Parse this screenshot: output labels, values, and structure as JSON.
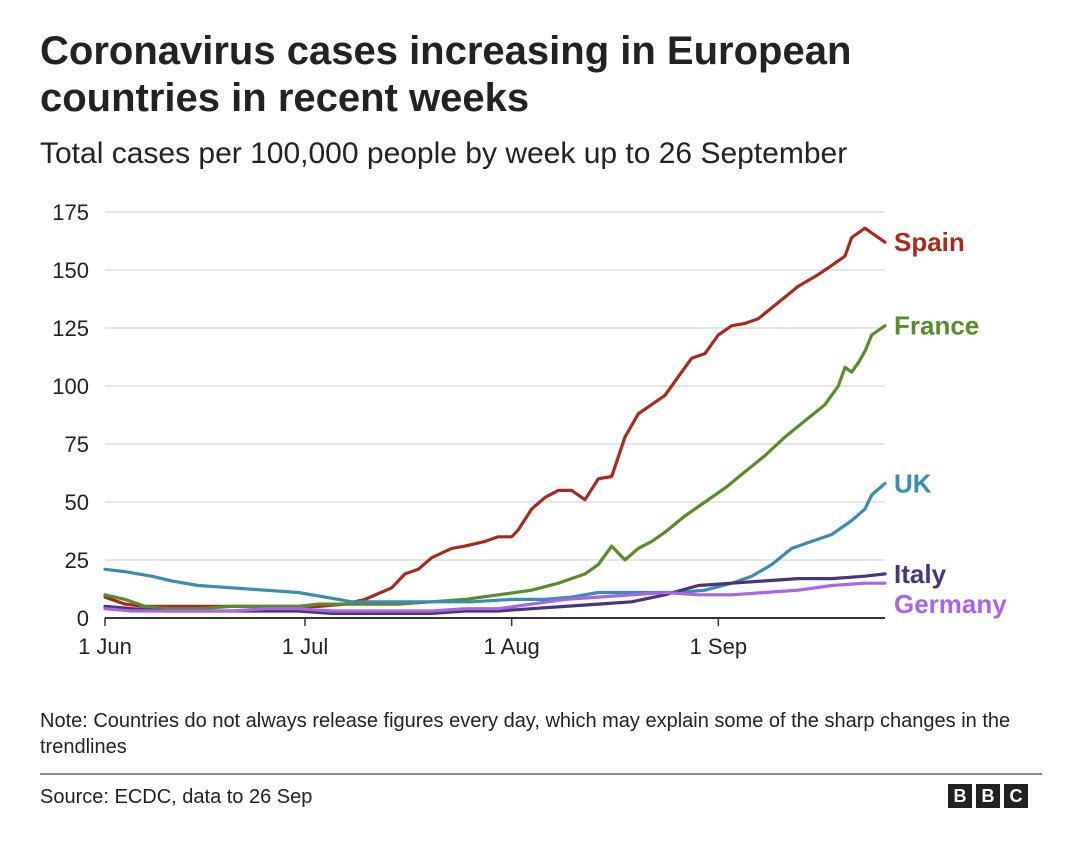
{
  "chart_data": {
    "type": "line",
    "title": "Coronavirus cases increasing in European countries in recent weeks",
    "subtitle": "Total cases per 100,000 people by week up to 26 September",
    "xlabel": "",
    "ylabel": "",
    "xlim": [
      "2020-06-01",
      "2020-09-26"
    ],
    "ylim": [
      0,
      175
    ],
    "yticks": [
      0,
      25,
      50,
      75,
      100,
      125,
      150,
      175
    ],
    "xticks": [
      {
        "date": "2020-06-01",
        "label": "1 Jun"
      },
      {
        "date": "2020-07-01",
        "label": "1 Jul"
      },
      {
        "date": "2020-08-01",
        "label": "1 Aug"
      },
      {
        "date": "2020-09-01",
        "label": "1 Sep"
      }
    ],
    "grid": true,
    "legend": "direct labels at line ends (right)",
    "series": [
      {
        "name": "Spain",
        "color": "#a62b1f",
        "x": [
          "2020-06-01",
          "2020-06-04",
          "2020-06-07",
          "2020-06-10",
          "2020-06-14",
          "2020-06-18",
          "2020-06-22",
          "2020-06-26",
          "2020-06-30",
          "2020-07-03",
          "2020-07-07",
          "2020-07-10",
          "2020-07-14",
          "2020-07-16",
          "2020-07-18",
          "2020-07-20",
          "2020-07-23",
          "2020-07-25",
          "2020-07-28",
          "2020-07-30",
          "2020-08-01",
          "2020-08-02",
          "2020-08-04",
          "2020-08-06",
          "2020-08-08",
          "2020-08-10",
          "2020-08-12",
          "2020-08-14",
          "2020-08-16",
          "2020-08-18",
          "2020-08-20",
          "2020-08-22",
          "2020-08-24",
          "2020-08-26",
          "2020-08-28",
          "2020-08-30",
          "2020-09-01",
          "2020-09-03",
          "2020-09-05",
          "2020-09-07",
          "2020-09-10",
          "2020-09-13",
          "2020-09-16",
          "2020-09-18",
          "2020-09-20",
          "2020-09-21",
          "2020-09-23",
          "2020-09-24",
          "2020-09-26"
        ],
        "y": [
          9,
          6,
          5,
          5,
          5,
          5,
          5,
          5,
          5,
          5,
          6,
          8,
          13,
          19,
          21,
          26,
          30,
          31,
          33,
          35,
          35,
          38,
          47,
          52,
          55,
          55,
          51,
          60,
          61,
          78,
          88,
          92,
          96,
          104,
          112,
          114,
          122,
          126,
          127,
          129,
          136,
          143,
          148,
          152,
          156,
          164,
          168,
          166,
          162
        ]
      },
      {
        "name": "France",
        "color": "#588c2b",
        "x": [
          "2020-06-01",
          "2020-06-04",
          "2020-06-07",
          "2020-06-10",
          "2020-06-15",
          "2020-06-20",
          "2020-06-25",
          "2020-06-30",
          "2020-07-03",
          "2020-07-06",
          "2020-07-10",
          "2020-07-15",
          "2020-07-20",
          "2020-07-25",
          "2020-07-30",
          "2020-08-04",
          "2020-08-08",
          "2020-08-12",
          "2020-08-14",
          "2020-08-16",
          "2020-08-18",
          "2020-08-20",
          "2020-08-22",
          "2020-08-24",
          "2020-08-27",
          "2020-08-30",
          "2020-09-02",
          "2020-09-05",
          "2020-09-08",
          "2020-09-11",
          "2020-09-14",
          "2020-09-17",
          "2020-09-19",
          "2020-09-20",
          "2020-09-21",
          "2020-09-22",
          "2020-09-23",
          "2020-09-24",
          "2020-09-26"
        ],
        "y": [
          10,
          8,
          5,
          4,
          4,
          5,
          5,
          5,
          6,
          6,
          6,
          6,
          7,
          8,
          10,
          12,
          15,
          19,
          23,
          31,
          25,
          30,
          33,
          37,
          44,
          50,
          56,
          63,
          70,
          78,
          85,
          92,
          100,
          108,
          106,
          110,
          115,
          122,
          126
        ]
      },
      {
        "name": "UK",
        "color": "#3c8cb0",
        "x": [
          "2020-06-01",
          "2020-06-04",
          "2020-06-08",
          "2020-06-11",
          "2020-06-15",
          "2020-06-20",
          "2020-06-25",
          "2020-06-30",
          "2020-07-04",
          "2020-07-08",
          "2020-07-14",
          "2020-07-20",
          "2020-07-26",
          "2020-08-01",
          "2020-08-06",
          "2020-08-10",
          "2020-08-14",
          "2020-08-18",
          "2020-08-22",
          "2020-08-26",
          "2020-08-30",
          "2020-09-03",
          "2020-09-06",
          "2020-09-09",
          "2020-09-12",
          "2020-09-15",
          "2020-09-18",
          "2020-09-21",
          "2020-09-23",
          "2020-09-24",
          "2020-09-26"
        ],
        "y": [
          21,
          20,
          18,
          16,
          14,
          13,
          12,
          11,
          9,
          7,
          7,
          7,
          7,
          8,
          8,
          9,
          11,
          11,
          11,
          11,
          12,
          15,
          18,
          23,
          30,
          33,
          36,
          42,
          47,
          53,
          58
        ]
      },
      {
        "name": "Italy",
        "color": "#4b3579",
        "x": [
          "2020-06-01",
          "2020-06-05",
          "2020-06-10",
          "2020-06-15",
          "2020-06-20",
          "2020-06-25",
          "2020-06-30",
          "2020-07-05",
          "2020-07-10",
          "2020-07-15",
          "2020-07-20",
          "2020-07-25",
          "2020-07-30",
          "2020-08-04",
          "2020-08-09",
          "2020-08-14",
          "2020-08-19",
          "2020-08-24",
          "2020-08-29",
          "2020-09-03",
          "2020-09-08",
          "2020-09-13",
          "2020-09-18",
          "2020-09-23",
          "2020-09-26"
        ],
        "y": [
          5,
          4,
          3,
          3,
          3,
          3,
          3,
          2,
          2,
          2,
          2,
          3,
          3,
          4,
          5,
          6,
          7,
          10,
          14,
          15,
          16,
          17,
          17,
          18,
          19
        ]
      },
      {
        "name": "Germany",
        "color": "#a866e6",
        "x": [
          "2020-06-01",
          "2020-06-05",
          "2020-06-10",
          "2020-06-15",
          "2020-06-20",
          "2020-06-25",
          "2020-06-30",
          "2020-07-05",
          "2020-07-10",
          "2020-07-15",
          "2020-07-20",
          "2020-07-25",
          "2020-07-30",
          "2020-08-04",
          "2020-08-09",
          "2020-08-14",
          "2020-08-19",
          "2020-08-24",
          "2020-08-29",
          "2020-09-03",
          "2020-09-08",
          "2020-09-13",
          "2020-09-18",
          "2020-09-23",
          "2020-09-26"
        ],
        "y": [
          4,
          3,
          3,
          3,
          3,
          4,
          4,
          3,
          3,
          3,
          3,
          4,
          4,
          6,
          8,
          9,
          10,
          11,
          10,
          10,
          11,
          12,
          14,
          15,
          15
        ]
      }
    ],
    "note": "Note: Countries do not always release figures every day, which may explain some of the sharp changes in the trendlines",
    "source": "Source: ECDC, data to 26 Sep"
  },
  "logo": {
    "letters": [
      "B",
      "B",
      "C"
    ]
  }
}
